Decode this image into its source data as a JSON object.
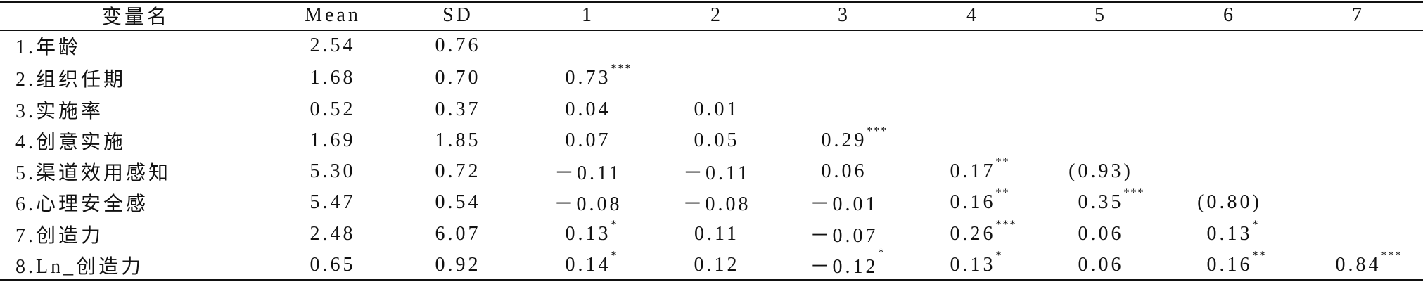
{
  "table": {
    "header": [
      "变量名",
      "Mean",
      "SD",
      "1",
      "2",
      "3",
      "4",
      "5",
      "6",
      "7"
    ],
    "rows": [
      {
        "label": "1.年龄",
        "mean": "2.54",
        "sd": "0.76",
        "cells": []
      },
      {
        "label": "2.组织任期",
        "mean": "1.68",
        "sd": "0.70",
        "cells": [
          {
            "value": "0.73",
            "sig": "***"
          }
        ]
      },
      {
        "label": "3.实施率",
        "mean": "0.52",
        "sd": "0.37",
        "cells": [
          {
            "value": "0.04"
          },
          {
            "value": "0.01"
          }
        ]
      },
      {
        "label": "4.创意实施",
        "mean": "1.69",
        "sd": "1.85",
        "cells": [
          {
            "value": "0.07"
          },
          {
            "value": "0.05"
          },
          {
            "value": "0.29",
            "sig": "***"
          }
        ]
      },
      {
        "label": "5.渠道效用感知",
        "mean": "5.30",
        "sd": "0.72",
        "cells": [
          {
            "value": "－0.11"
          },
          {
            "value": "－0.11"
          },
          {
            "value": "0.06"
          },
          {
            "value": "0.17",
            "sig": "**"
          },
          {
            "value": "(0.93)"
          }
        ]
      },
      {
        "label": "6.心理安全感",
        "mean": "5.47",
        "sd": "0.54",
        "cells": [
          {
            "value": "－0.08"
          },
          {
            "value": "－0.08"
          },
          {
            "value": "－0.01"
          },
          {
            "value": "0.16",
            "sig": "**"
          },
          {
            "value": "0.35",
            "sig": "***"
          },
          {
            "value": "(0.80)"
          }
        ]
      },
      {
        "label": "7.创造力",
        "mean": "2.48",
        "sd": "6.07",
        "cells": [
          {
            "value": "0.13",
            "sig": "*"
          },
          {
            "value": "0.11"
          },
          {
            "value": "－0.07"
          },
          {
            "value": "0.26",
            "sig": "***"
          },
          {
            "value": "0.06"
          },
          {
            "value": "0.13",
            "sig": "*"
          }
        ]
      },
      {
        "label": "8.Ln_创造力",
        "mean": "0.65",
        "sd": "0.92",
        "cells": [
          {
            "value": "0.14",
            "sig": "*"
          },
          {
            "value": "0.12"
          },
          {
            "value": "－0.12",
            "sig": "*"
          },
          {
            "value": "0.13",
            "sig": "*"
          },
          {
            "value": "0.06"
          },
          {
            "value": "0.16",
            "sig": "**"
          },
          {
            "value": "0.84",
            "sig": "***"
          }
        ]
      }
    ]
  }
}
